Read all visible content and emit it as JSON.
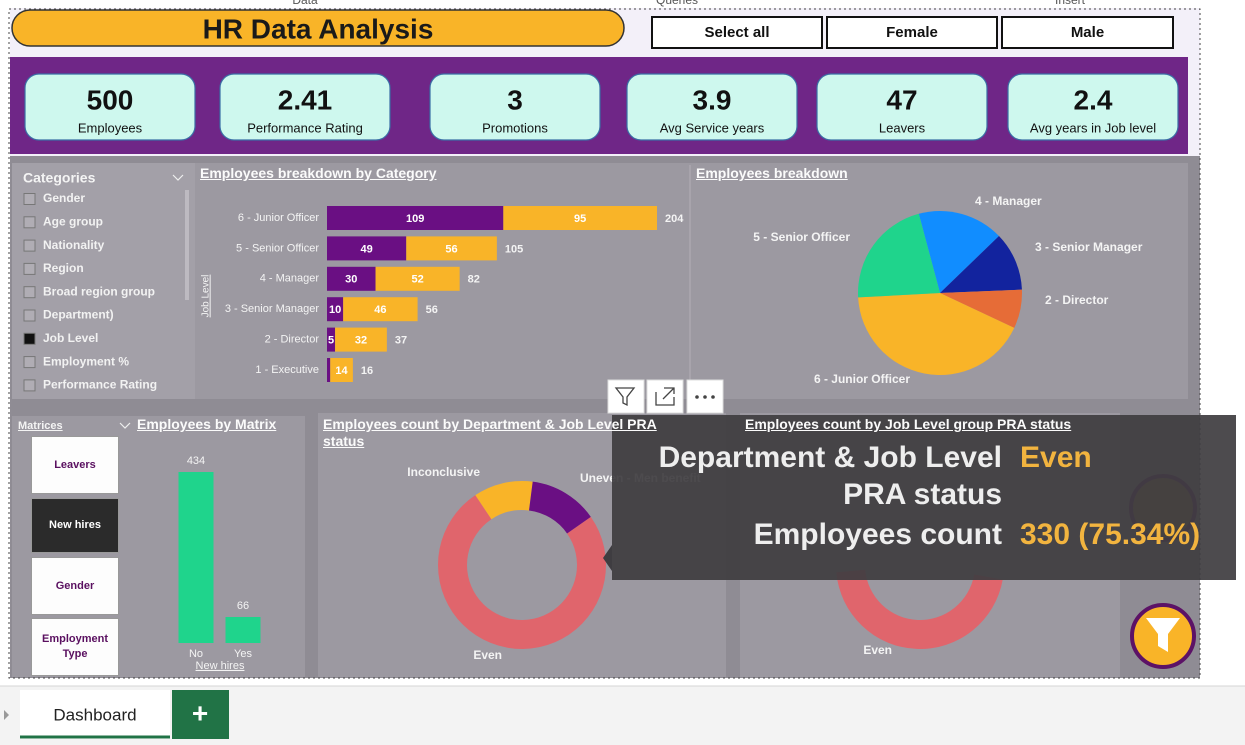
{
  "menu": [
    "Data",
    "Queries",
    "Insert"
  ],
  "header": {
    "title": "HR Data Analysis",
    "buttons": [
      "Select all",
      "Female",
      "Male"
    ]
  },
  "kpis": [
    {
      "value": 500,
      "label": "Employees"
    },
    {
      "value": 2.41,
      "label": "Performance Rating"
    },
    {
      "value": 3,
      "label": "Promotions"
    },
    {
      "value": 3.9,
      "label": "Avg Service years"
    },
    {
      "value": 47,
      "label": "Leavers"
    },
    {
      "value": 2.4,
      "label": "Avg years in Job level"
    }
  ],
  "slicers": {
    "categories": {
      "title": "Categories",
      "items": [
        "Gender",
        "Age group",
        "Nationality",
        "Region",
        "Broad region group",
        "Department)",
        "Job Level",
        "Employment %",
        "Performance Rating"
      ],
      "selected": "Job Level"
    },
    "matrices": {
      "title": "Matrices",
      "items": [
        "Leavers",
        "New hires",
        "Gender",
        "Employment Type"
      ],
      "selected": "New hires"
    }
  },
  "chart_data": [
    {
      "type": "stacked-bar",
      "title": "Employees breakdown by Category",
      "y_label": "Job Level",
      "categories": [
        "6 - Junior Officer",
        "5 - Senior Officer",
        "4 - Manager",
        "3 - Senior Manager",
        "2 - Director",
        "1 - Executive"
      ],
      "series": [
        {
          "color": "#6a0f83",
          "values": [
            109,
            49,
            30,
            10,
            5,
            2
          ],
          "value_labels": [
            "109",
            "49",
            "30",
            "10",
            "5",
            null
          ]
        },
        {
          "color": "#f9b428",
          "values": [
            95,
            56,
            52,
            46,
            32,
            14
          ]
        }
      ],
      "totals": [
        204,
        105,
        82,
        56,
        37,
        16
      ]
    },
    {
      "type": "pie",
      "title": "Employees breakdown",
      "categories": [
        "4 - Manager",
        "3 - Senior Manager",
        "2 - Director",
        "6 - Junior Officer",
        "5 - Senior Officer"
      ],
      "values": [
        82,
        56,
        37,
        204,
        105
      ],
      "colors": [
        "#118dff",
        "#12239e",
        "#e66c37",
        "#f9b428",
        "#1fd48c"
      ]
    },
    {
      "type": "bar",
      "title": "Employees by Matrix",
      "categories": [
        "No",
        "Yes"
      ],
      "values": [
        434,
        66
      ],
      "color": "#1fd48c",
      "x_label": "New hires"
    },
    {
      "type": "donut",
      "title": "Employees count by Department & Job Level PRA status",
      "categories": [
        "Even",
        "Inconclusive",
        "Uneven - Men benefit"
      ],
      "values": [
        330,
        50,
        58
      ],
      "colors": [
        "#e0656c",
        "#f9b428",
        "#6a0f83"
      ]
    },
    {
      "type": "donut",
      "title": "Employees count by Job Level group PRA status",
      "categories": [
        "Even"
      ],
      "colors": [
        "#e0656c"
      ]
    }
  ],
  "tooltip": {
    "rows": [
      {
        "label": "Department & Job Level PRA status",
        "value": "Even"
      },
      {
        "label": "Employees count",
        "value": "330 (75.34%)"
      }
    ]
  },
  "tabs": {
    "items": [
      "Dashboard"
    ],
    "add": "+"
  }
}
